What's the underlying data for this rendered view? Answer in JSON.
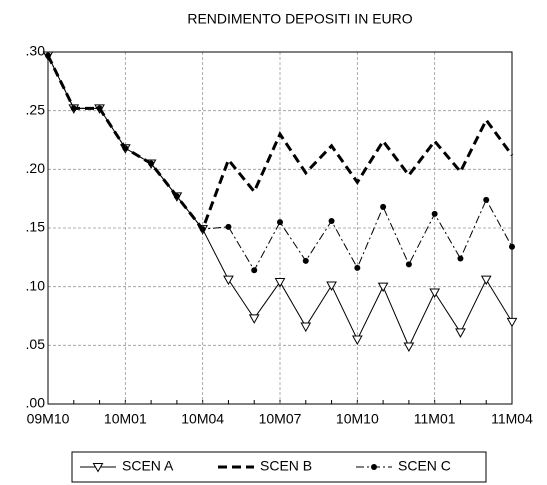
{
  "chart_data": {
    "type": "line",
    "title": "RENDIMENTO DEPOSITI IN EURO",
    "categories": [
      "09M10",
      null,
      null,
      "10M01",
      null,
      null,
      "10M04",
      null,
      null,
      "10M07",
      null,
      null,
      "10M10",
      null,
      null,
      "11M01",
      null,
      null,
      "11M04"
    ],
    "series": [
      {
        "name": "SCEN A",
        "color": "#000000",
        "line_style": "solid",
        "marker": "triangle-down",
        "values": [
          0.297,
          0.252,
          0.252,
          0.218,
          0.205,
          0.177,
          0.149,
          0.106,
          0.073,
          0.104,
          0.066,
          0.101,
          0.055,
          0.1,
          0.049,
          0.095,
          0.061,
          0.106,
          0.07
        ]
      },
      {
        "name": "SCEN B",
        "color": "#000000",
        "line_style": "dashed",
        "marker": "none",
        "values": [
          0.297,
          0.252,
          0.252,
          0.218,
          0.205,
          0.177,
          0.149,
          0.208,
          0.181,
          0.23,
          0.197,
          0.22,
          0.189,
          0.224,
          0.195,
          0.224,
          0.198,
          0.242,
          0.212
        ]
      },
      {
        "name": "SCEN C",
        "color": "#000000",
        "line_style": "dashdot",
        "marker": "circle",
        "values": [
          0.297,
          0.252,
          0.252,
          0.218,
          0.205,
          0.177,
          0.149,
          0.151,
          0.114,
          0.155,
          0.122,
          0.156,
          0.116,
          0.168,
          0.119,
          0.162,
          0.124,
          0.174,
          0.134
        ]
      }
    ],
    "ylim": [
      0,
      0.3
    ],
    "yticks": [
      {
        "value": 0,
        "label": ".00"
      },
      {
        "value": 0.05,
        "label": ".05"
      },
      {
        "value": 0.1,
        "label": ".10"
      },
      {
        "value": 0.15,
        "label": ".15"
      },
      {
        "value": 0.2,
        "label": ".20"
      },
      {
        "value": 0.25,
        "label": ".25"
      },
      {
        "value": 0.3,
        "label": ".30"
      }
    ],
    "grid": true,
    "legend": "bottom"
  }
}
